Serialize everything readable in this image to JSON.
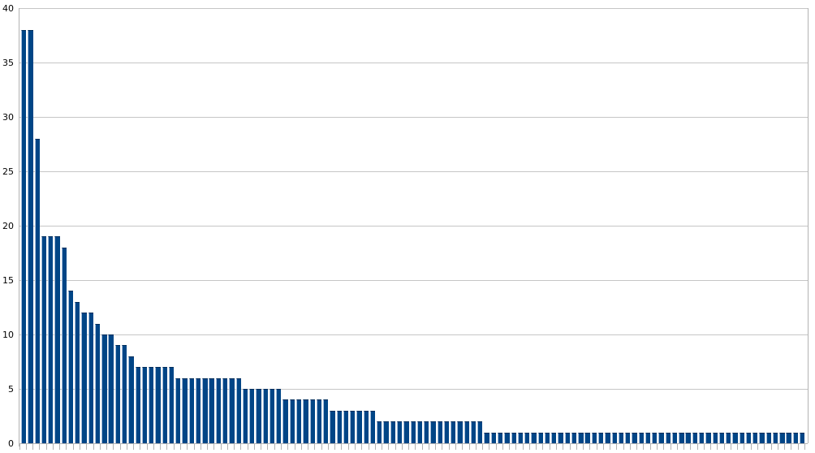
{
  "chart_data": {
    "type": "bar",
    "title": "",
    "xlabel": "",
    "ylabel": "",
    "ylim": [
      0,
      40
    ],
    "ytick_step": 5,
    "ytick_labels": [
      "0",
      "5",
      "10",
      "15",
      "20",
      "25",
      "30",
      "35",
      "40"
    ],
    "grid": true,
    "legend": false,
    "categories": [],
    "values": [
      38,
      38,
      28,
      19,
      19,
      19,
      18,
      14,
      13,
      12,
      12,
      11,
      10,
      10,
      9,
      9,
      8,
      7,
      7,
      7,
      7,
      7,
      7,
      6,
      6,
      6,
      6,
      6,
      6,
      6,
      6,
      6,
      6,
      5,
      5,
      5,
      5,
      5,
      5,
      4,
      4,
      4,
      4,
      4,
      4,
      4,
      3,
      3,
      3,
      3,
      3,
      3,
      3,
      2,
      2,
      2,
      2,
      2,
      2,
      2,
      2,
      2,
      2,
      2,
      2,
      2,
      2,
      2,
      2,
      1,
      1,
      1,
      1,
      1,
      1,
      1,
      1,
      1,
      1,
      1,
      1,
      1,
      1,
      1,
      1,
      1,
      1,
      1,
      1,
      1,
      1,
      1,
      1,
      1,
      1,
      1,
      1,
      1,
      1,
      1,
      1,
      1,
      1,
      1,
      1,
      1,
      1,
      1,
      1,
      1,
      1,
      1,
      1,
      1,
      1,
      1,
      1
    ],
    "colors": {
      "bar_fill": "#004586",
      "bar_edge_highlight": "#a6bedb",
      "bar_edge_dark": "#002d5a",
      "gridline": "#c6c6c6",
      "axis": "#b3b3b3",
      "tick": "#b3b3b3",
      "label_text": "#000000",
      "background": "#ffffff"
    }
  }
}
